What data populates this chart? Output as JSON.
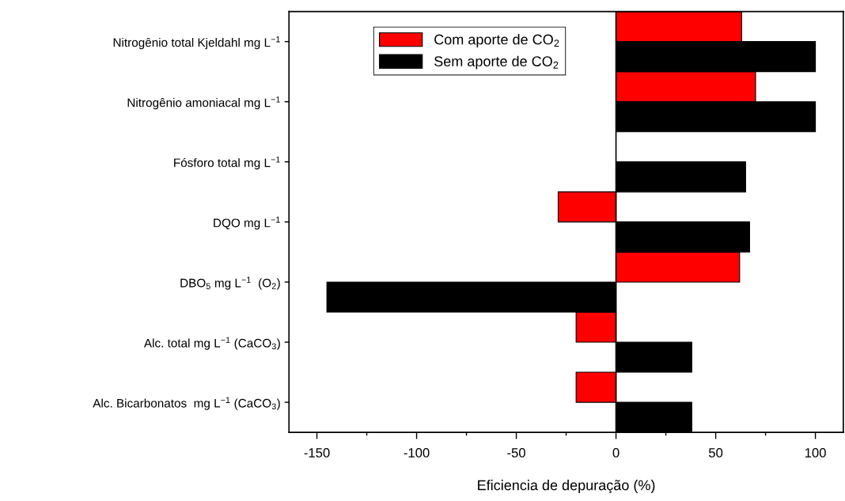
{
  "chart_data": {
    "type": "bar",
    "orientation": "horizontal",
    "categories": [
      "Nitrogênio total Kjeldahl mg L$^{−1}$",
      "Nitrogênio amoniacal mg L$^{−1}$",
      "Fósforo total mg L$^{−1}$",
      "DQO mg L$^{−1}$",
      "DBO$_{5}$ mg L$^{−1}$  (O$_{2}$)",
      "Alc. total mg L$^{−1}$ (CaCO$_{3}$)",
      "Alc. Bicarbonatos  mg L$^{−1}$ (CaCO$_{3}$)"
    ],
    "series": [
      {
        "name": "Com aporte de CO$_{2}$",
        "color": "#ff0000",
        "values": [
          63,
          70,
          null,
          -29,
          62,
          -20,
          -20
        ]
      },
      {
        "name": "Sem aporte de CO$_{2}$",
        "color": "#000000",
        "values": [
          100,
          100,
          65,
          67,
          -145,
          38,
          38
        ]
      }
    ],
    "xlabel": "Eficiencia de depuração (%)",
    "xlim": [
      -164,
      114
    ],
    "xticks": [
      -150,
      {
        "value": -125,
        "label": null
      },
      -100,
      {
        "value": -75,
        "label": null
      },
      -50,
      {
        "value": -25,
        "label": null
      },
      0,
      {
        "value": 25,
        "label": null
      },
      50,
      {
        "value": 75,
        "label": null
      },
      100
    ],
    "ref_lines": [
      {
        "axis": "x",
        "value": 0,
        "color": "#000000"
      }
    ],
    "legend": "top left",
    "grid": false
  }
}
